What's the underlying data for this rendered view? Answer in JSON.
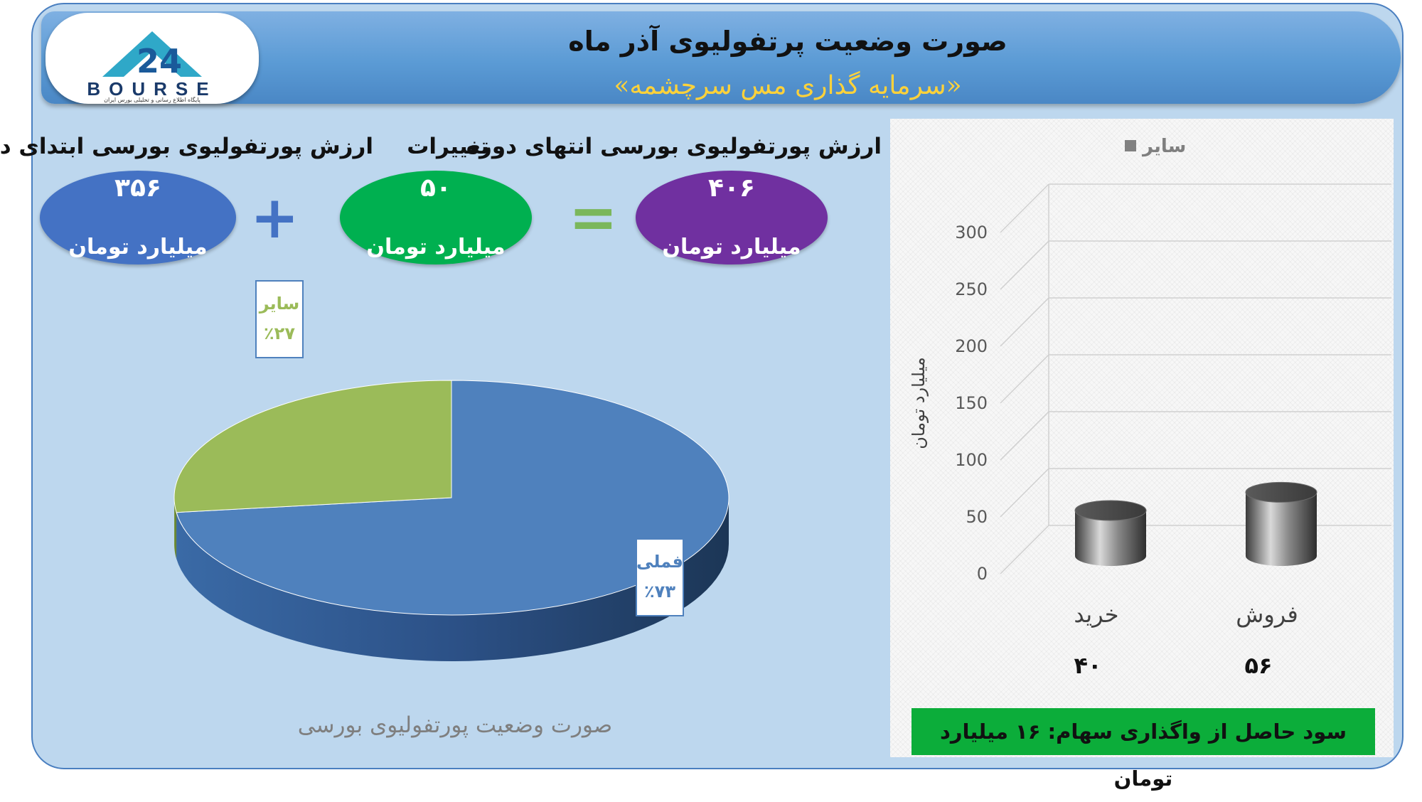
{
  "header": {
    "title": "صورت وضعیت پرتفولیوی آذر ماه",
    "subtitle": "«سرمایه گذاری مس سرچشمه»"
  },
  "logo": {
    "wordmark": "BOURSE",
    "tagline": "پایگاه اطلاع رسانی و تحلیلی بورس ایران"
  },
  "kpis": {
    "start": {
      "label": "ارزش پورتفولیوی بورسی ابتدای دوره",
      "value": "۳۵۶",
      "unit": "میلیارد تومان",
      "color": "#4472c4"
    },
    "change": {
      "label": "تغییرات",
      "value": "۵۰",
      "unit": "میلیارد تومان",
      "color": "#00b050"
    },
    "end": {
      "label": "ارزش پورتفولیوی بورسی انتهای دوره",
      "value": "۴۰۶",
      "unit": "میلیارد تومان",
      "color": "#7030a0"
    },
    "plus_symbol": "+",
    "equals_symbol": "="
  },
  "chart_data": [
    {
      "type": "pie",
      "title": "صورت وضعیت پورتفولیوی بورسی",
      "slices": [
        {
          "label": "فملی",
          "value": 73,
          "display": "٪۷۳",
          "color": "#4f81bd"
        },
        {
          "label": "سایر",
          "value": 27,
          "display": "٪۲۷",
          "color": "#9bbb59"
        }
      ]
    },
    {
      "type": "bar",
      "categories": [
        "خرید",
        "فروش"
      ],
      "values": [
        40,
        56
      ],
      "value_labels": [
        "۴۰",
        "۵۶"
      ],
      "series": [
        {
          "name": "سایر",
          "values": [
            40,
            56
          ]
        }
      ],
      "ylabel": "میلیارد تومان",
      "ylim": [
        0,
        300
      ],
      "yticks": [
        "0",
        "50",
        "100",
        "150",
        "200",
        "250",
        "300"
      ],
      "legend": "top",
      "grid": true
    }
  ],
  "footer_banner": "سود حاصل از واگذاری سهام: ۱۶ میلیارد تومان"
}
